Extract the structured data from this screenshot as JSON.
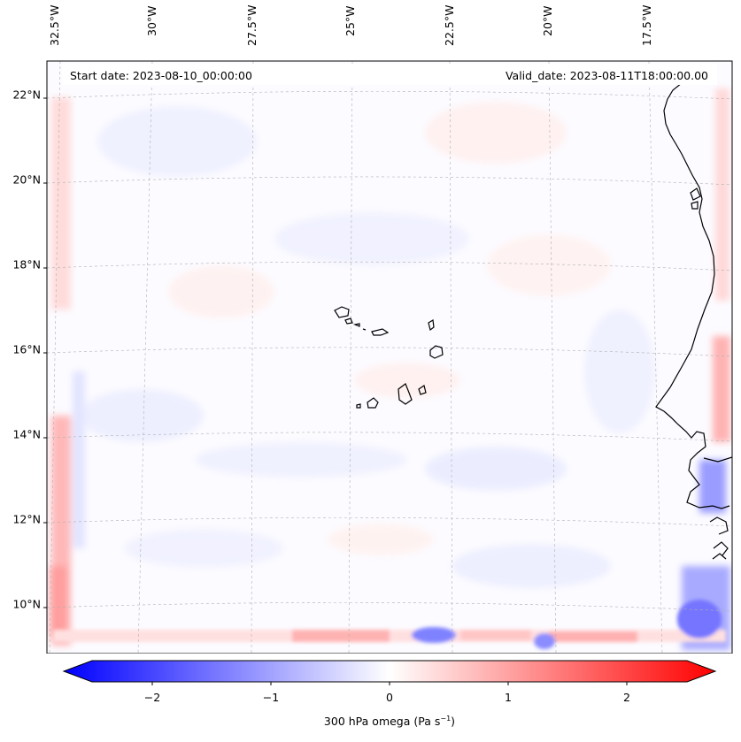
{
  "annotations": {
    "start_date": "Start date: 2023-08-10_00:00:00",
    "valid_date": "Valid_date: 2023-08-11T18:00:00.00"
  },
  "lat_labels": [
    "22°N",
    "20°N",
    "18°N",
    "16°N",
    "14°N",
    "12°N",
    "10°N"
  ],
  "lon_labels": [
    "32.5°W",
    "30°W",
    "27.5°W",
    "25°W",
    "22.5°W",
    "20°W",
    "17.5°W"
  ],
  "colorbar": {
    "ticks": [
      "−2",
      "−1",
      "0",
      "1",
      "2"
    ],
    "label_main": "300 hPa omega (Pa s",
    "label_exp": "−1",
    "label_end": ")",
    "min": -2.5,
    "max": 2.5,
    "low_color": "#0000ff",
    "mid_color": "#ffffff",
    "high_color": "#ff0000"
  },
  "map": {
    "field": "300 hPa omega",
    "region": "Cabo Verde / West African coast",
    "coastline_color": "#000000",
    "gridline_color": "#b0b0b0"
  }
}
